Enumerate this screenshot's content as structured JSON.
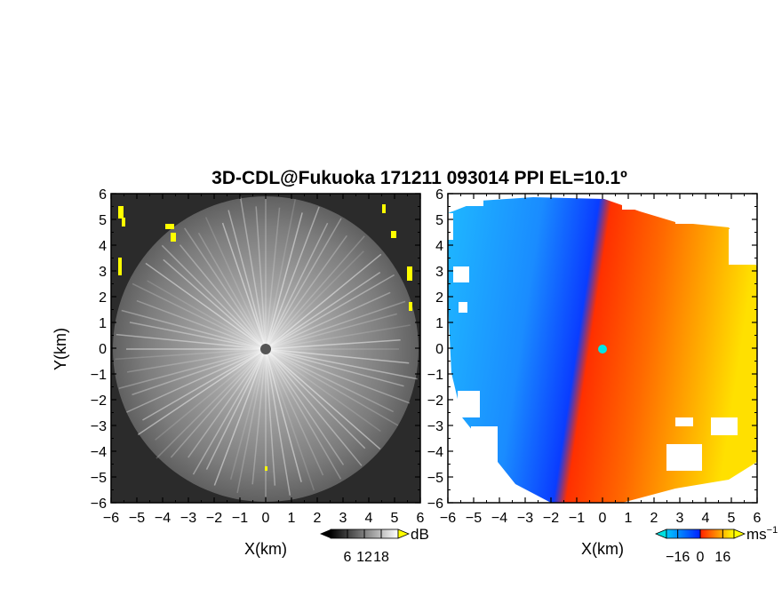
{
  "chart_data": [
    {
      "type": "heatmap",
      "panel": "reflectivity",
      "title": "3D-CDL@Fukuoka 171211 093014 PPI EL=10.1º",
      "xlabel": "X(km)",
      "ylabel": "Y(km)",
      "xlim": [
        -6,
        6
      ],
      "ylim": [
        -6,
        6
      ],
      "xticks": [
        "−6",
        "−5",
        "−4",
        "−3",
        "−2",
        "−1",
        "0",
        "1",
        "2",
        "3",
        "4",
        "5",
        "6"
      ],
      "yticks": [
        "6",
        "5",
        "4",
        "3",
        "2",
        "1",
        "0",
        "−1",
        "−2",
        "−3",
        "−4",
        "−5",
        "−6"
      ],
      "colorbar": {
        "unit": "dB",
        "ticks": [
          6,
          12,
          18
        ],
        "tick_labels": [
          "6",
          "12",
          "18"
        ],
        "range": [
          0,
          24
        ],
        "colors": [
          "#000000",
          "#ffffff"
        ],
        "over_color": "#ffff00"
      },
      "radar_center": [
        0,
        0
      ],
      "max_range_km": 6
    },
    {
      "type": "heatmap",
      "panel": "doppler-velocity",
      "xlabel": "X(km)",
      "xlim": [
        -6,
        6
      ],
      "ylim": [
        -6,
        6
      ],
      "xticks": [
        "−6",
        "−5",
        "−4",
        "−3",
        "−2",
        "−1",
        "0",
        "1",
        "2",
        "3",
        "4",
        "5",
        "6"
      ],
      "yticks": [
        "6",
        "5",
        "4",
        "3",
        "2",
        "1",
        "0",
        "−1",
        "−2",
        "−3",
        "−4",
        "−5",
        "−6"
      ],
      "colorbar": {
        "unit": "ms",
        "unit_exp": "−1",
        "ticks": [
          -16,
          0,
          16
        ],
        "tick_labels": [
          "−16",
          "0",
          "16"
        ],
        "range": [
          -24,
          24
        ],
        "colors": [
          "#00c8ff",
          "#0030ff",
          "#ff2000",
          "#ffff00"
        ],
        "under_color": "#00e0e0",
        "over_color": "#ffff00"
      },
      "radar_center": [
        0,
        0
      ],
      "max_range_km": 6
    }
  ]
}
